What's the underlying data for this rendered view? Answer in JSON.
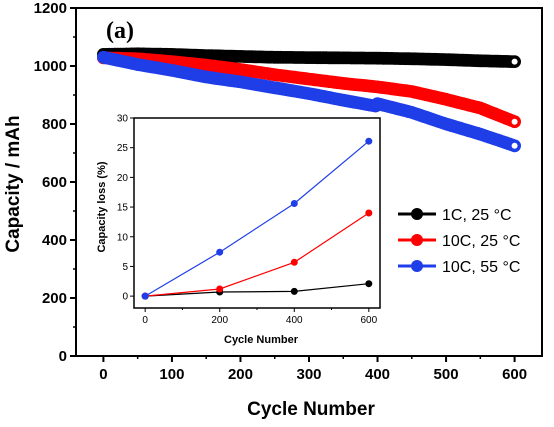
{
  "chart_data": [
    {
      "type": "scatter",
      "panel_label": "(a)",
      "xlabel": "Cycle Number",
      "ylabel": "Capacity / mAh",
      "xlim": [
        -40,
        640
      ],
      "ylim": [
        0,
        1200
      ],
      "x_ticks": [
        "0",
        "100",
        "200",
        "300",
        "400",
        "500",
        "600"
      ],
      "y_ticks": [
        "0",
        "200",
        "400",
        "600",
        "800",
        "1000",
        "1200"
      ],
      "legend_position": "right",
      "series": [
        {
          "name": "1C, 25 °C",
          "color": "#000000",
          "x": [
            0,
            50,
            100,
            150,
            200,
            250,
            300,
            350,
            400,
            450,
            500,
            550,
            600
          ],
          "y": [
            1040,
            1042,
            1040,
            1036,
            1033,
            1030,
            1029,
            1028,
            1027,
            1025,
            1022,
            1018,
            1015
          ]
        },
        {
          "name": "10C, 25 °C",
          "color": "#ff0000",
          "x": [
            0,
            50,
            100,
            150,
            200,
            250,
            300,
            350,
            400,
            450,
            500,
            550,
            600
          ],
          "y": [
            1028,
            1025,
            1015,
            1003,
            988,
            970,
            955,
            940,
            928,
            912,
            885,
            855,
            808
          ]
        },
        {
          "name": "10C, 55 °C",
          "color": "#1f3ee8",
          "x": [
            0,
            50,
            100,
            150,
            200,
            250,
            300,
            350,
            397,
            400,
            450,
            500,
            550,
            600
          ],
          "y": [
            1030,
            1005,
            985,
            962,
            945,
            925,
            905,
            882,
            862,
            870,
            840,
            800,
            765,
            725
          ]
        }
      ]
    },
    {
      "type": "line",
      "xlabel": "Cycle Number",
      "ylabel": "Capacity loss (%)",
      "xlim": [
        -30,
        630
      ],
      "ylim": [
        -2,
        30
      ],
      "x_ticks": [
        "0",
        "200",
        "400",
        "600"
      ],
      "y_ticks": [
        "0",
        "5",
        "10",
        "15",
        "20",
        "25",
        "30"
      ],
      "series": [
        {
          "color": "#000000",
          "x": [
            0,
            200,
            400,
            600
          ],
          "y": [
            0,
            0.7,
            0.8,
            2.1
          ]
        },
        {
          "color": "#ff0000",
          "x": [
            0,
            200,
            400,
            600
          ],
          "y": [
            0,
            1.2,
            5.7,
            14.0
          ]
        },
        {
          "color": "#1f3ee8",
          "x": [
            0,
            200,
            400,
            600
          ],
          "y": [
            0,
            7.4,
            15.6,
            26.1
          ]
        }
      ]
    }
  ]
}
